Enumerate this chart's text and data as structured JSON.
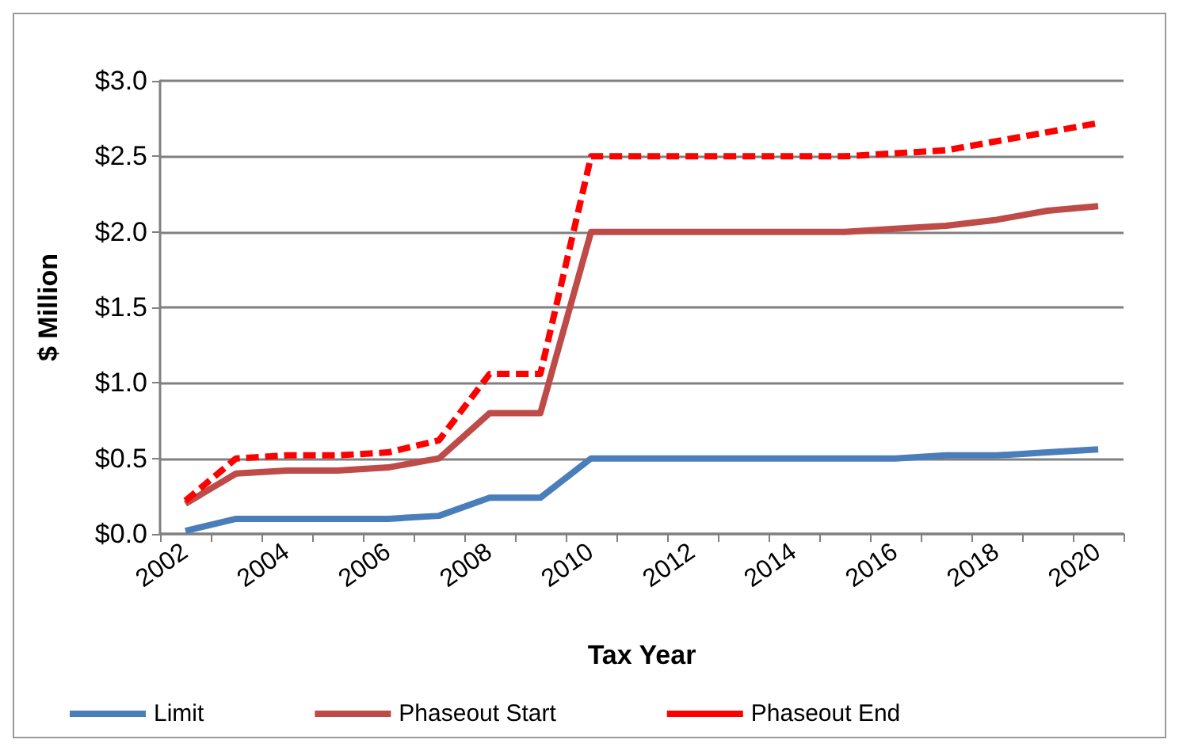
{
  "chart_data": {
    "type": "line",
    "xlabel": "Tax Year",
    "ylabel": "$ Million",
    "categories": [
      "2002",
      null,
      "2004",
      null,
      "2006",
      null,
      "2008",
      null,
      "2010",
      null,
      "2012",
      null,
      "2014",
      null,
      "2016",
      null,
      "2018",
      null,
      "2020"
    ],
    "series": [
      {
        "name": "Limit",
        "color": "#4a7ebb",
        "line_style": "solid",
        "values": [
          0.02,
          0.1,
          0.1,
          0.1,
          0.1,
          0.12,
          0.24,
          0.24,
          0.5,
          0.5,
          0.5,
          0.5,
          0.5,
          0.5,
          0.5,
          0.52,
          0.52,
          0.54,
          0.56
        ]
      },
      {
        "name": "Phaseout Start",
        "color": "#be4b48",
        "line_style": "solid",
        "values": [
          0.2,
          0.4,
          0.42,
          0.42,
          0.44,
          0.5,
          0.8,
          0.8,
          2.0,
          2.0,
          2.0,
          2.0,
          2.0,
          2.0,
          2.02,
          2.04,
          2.08,
          2.14,
          2.17
        ]
      },
      {
        "name": "Phaseout End",
        "color": "#ff0000",
        "line_style": "dashed",
        "values": [
          0.22,
          0.5,
          0.52,
          0.52,
          0.54,
          0.62,
          1.06,
          1.06,
          2.5,
          2.5,
          2.5,
          2.5,
          2.5,
          2.5,
          2.52,
          2.54,
          2.6,
          2.66,
          2.72
        ]
      }
    ],
    "ylim": [
      0,
      3
    ],
    "yticks": [
      {
        "value": 0,
        "label": "$0.0"
      },
      {
        "value": 0.5,
        "label": "$0.5"
      },
      {
        "value": 1,
        "label": "$1.0"
      },
      {
        "value": 1.5,
        "label": "$1.5"
      },
      {
        "value": 2,
        "label": "$2.0"
      },
      {
        "value": 2.5,
        "label": "$2.5"
      },
      {
        "value": 3,
        "label": "$3.0"
      }
    ],
    "grid": "y",
    "legend": "bottom",
    "marker": "none"
  }
}
